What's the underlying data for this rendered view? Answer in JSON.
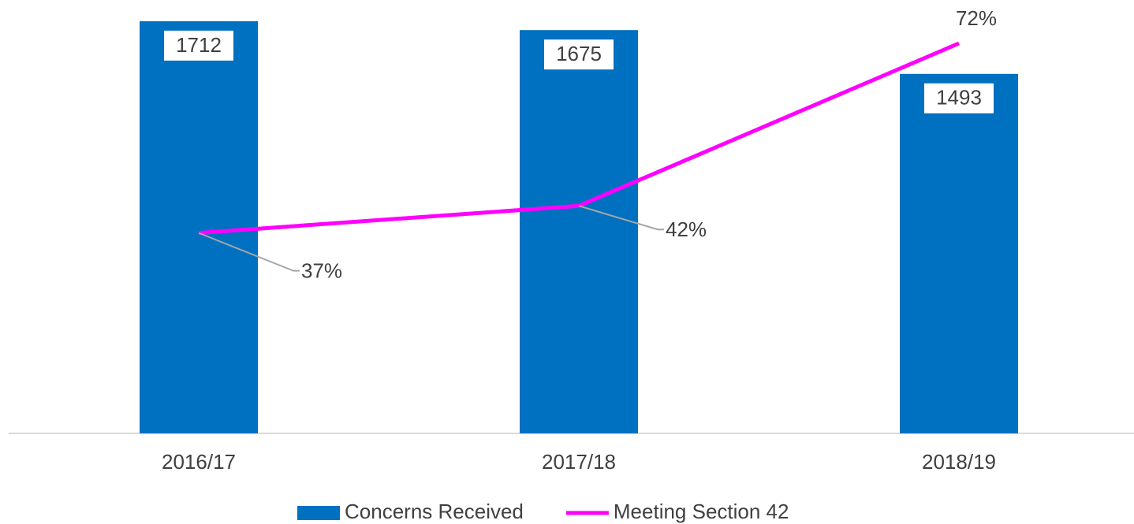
{
  "chart_data": {
    "type": "bar-line",
    "categories": [
      "2016/17",
      "2017/18",
      "2018/19"
    ],
    "series": [
      {
        "name": "Concerns Received",
        "type": "bar",
        "color": "#0070c0",
        "values": [
          1712,
          1675,
          1493
        ]
      },
      {
        "name": "Meeting Section 42",
        "type": "line",
        "axis": "y2",
        "color": "#ff00ff",
        "values": [
          37,
          42,
          72
        ],
        "value_labels": [
          "37%",
          "42%",
          "72%"
        ]
      }
    ],
    "ylim": [
      0,
      1800
    ],
    "y2lim": [
      0,
      80
    ],
    "legend": "bottom"
  }
}
